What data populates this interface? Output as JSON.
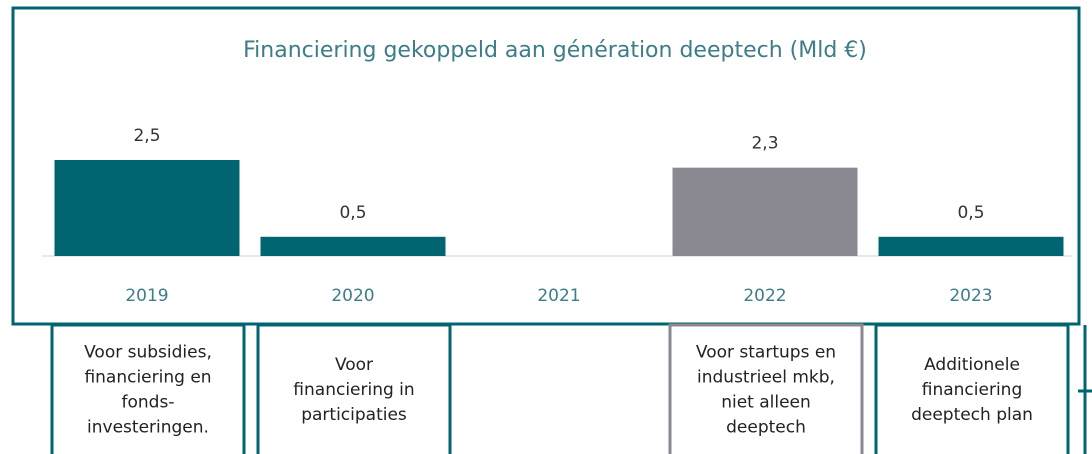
{
  "chart_data": {
    "type": "bar",
    "title": "Financiering gekoppeld aan génération deeptech (Mld €)",
    "categories": [
      "2019",
      "2020",
      "2021",
      "2022",
      "2023"
    ],
    "values": [
      2.5,
      0.5,
      null,
      2.3,
      0.5
    ],
    "value_labels": [
      "2,5",
      "0,5",
      null,
      "2,3",
      "0,5"
    ],
    "colors": [
      "#006570",
      "#006570",
      "#006570",
      "#8a8891",
      "#006570"
    ],
    "ylim": [
      0,
      2.5
    ],
    "notes": [
      [
        "Voor subsidies,",
        "financiering en",
        "fonds-",
        "investeringen."
      ],
      [
        "Voor",
        "financiering in",
        "participaties"
      ],
      null,
      [
        "Voor startups en",
        "industrieel mkb,",
        "niet alleen",
        "deeptech"
      ],
      [
        "Additionele",
        "financiering",
        "deeptech plan"
      ]
    ]
  }
}
